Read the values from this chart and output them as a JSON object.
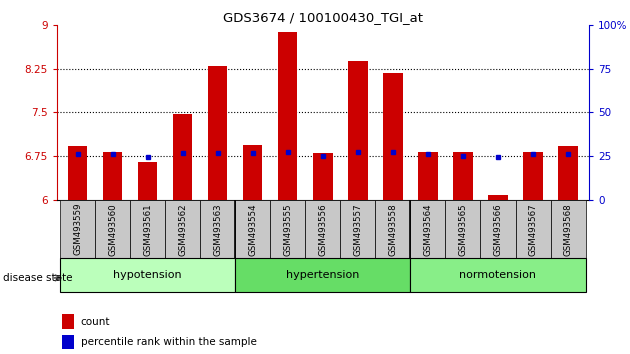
{
  "title": "GDS3674 / 100100430_TGI_at",
  "samples": [
    "GSM493559",
    "GSM493560",
    "GSM493561",
    "GSM493562",
    "GSM493563",
    "GSM493554",
    "GSM493555",
    "GSM493556",
    "GSM493557",
    "GSM493558",
    "GSM493564",
    "GSM493565",
    "GSM493566",
    "GSM493567",
    "GSM493568"
  ],
  "bar_values": [
    6.92,
    6.82,
    6.65,
    7.48,
    8.3,
    6.95,
    8.87,
    6.81,
    8.38,
    8.18,
    6.82,
    6.82,
    6.08,
    6.82,
    6.92
  ],
  "blue_dot_values": [
    6.78,
    6.78,
    6.73,
    6.8,
    6.8,
    6.8,
    6.83,
    6.76,
    6.83,
    6.82,
    6.78,
    6.76,
    6.73,
    6.78,
    6.78
  ],
  "ylim": [
    6.0,
    9.0
  ],
  "yticks": [
    6.0,
    6.75,
    7.5,
    8.25,
    9.0
  ],
  "ytick_labels": [
    "6",
    "6.75",
    "7.5",
    "8.25",
    "9"
  ],
  "y2ticks": [
    0,
    25,
    50,
    75,
    100
  ],
  "y2tick_labels": [
    "0",
    "25",
    "50",
    "75",
    "100%"
  ],
  "dotted_lines": [
    6.75,
    7.5,
    8.25
  ],
  "bar_color": "#CC0000",
  "dot_color": "#0000CC",
  "bar_width": 0.55,
  "label_count": "count",
  "label_pct": "percentile rank within the sample",
  "xlabel": "disease state",
  "group_configs": [
    {
      "label": "hypotension",
      "start": 0,
      "end": 4,
      "color": "#BBFFBB"
    },
    {
      "label": "hypertension",
      "start": 5,
      "end": 9,
      "color": "#66DD66"
    },
    {
      "label": "normotension",
      "start": 10,
      "end": 14,
      "color": "#88EE88"
    }
  ]
}
